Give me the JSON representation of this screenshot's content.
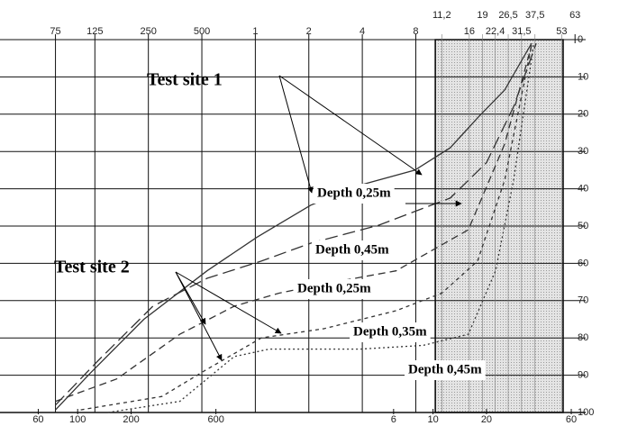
{
  "chart_data": {
    "type": "line",
    "xscale": "log",
    "xlim": [
      0.055,
      54
    ],
    "ylim": [
      0,
      100
    ],
    "y_inverted": true,
    "grid": true,
    "band": [
      10.3,
      54
    ],
    "band_color": "#d6d6d6",
    "xticks": [
      {
        "value": 0.075,
        "label": "75"
      },
      {
        "value": 0.125,
        "label": "125"
      },
      {
        "value": 0.25,
        "label": "250"
      },
      {
        "value": 0.5,
        "label": "500"
      },
      1,
      2,
      4,
      8,
      {
        "value": 11.2,
        "label": "11,2"
      },
      16,
      19,
      {
        "value": 22.4,
        "label": "22,4"
      },
      {
        "value": 26.5,
        "label": "26,5"
      },
      {
        "value": 31.5,
        "label": "31,5"
      },
      {
        "value": 37.5,
        "label": "37,5"
      },
      53,
      63
    ],
    "x2ticks": [
      {
        "value": 0.06,
        "label": "60"
      },
      {
        "value": 0.1,
        "label": "100"
      },
      {
        "value": 0.2,
        "label": "200"
      },
      {
        "value": 0.6,
        "label": "600"
      },
      6,
      10,
      20,
      60
    ],
    "yticks": [
      0,
      10,
      20,
      30,
      40,
      50,
      60,
      70,
      80,
      90,
      100
    ],
    "annotations": [
      "Test site 1",
      "Test site 2"
    ],
    "series": [
      {
        "name": "Depth 0,25m",
        "color": "#333333",
        "dash": "solid",
        "x": [
          0.075,
          0.117,
          0.236,
          0.535,
          1.02,
          2.05,
          3.9,
          7.9,
          12.5,
          17.8,
          25.3,
          35.9
        ],
        "values": [
          99.3,
          89.6,
          75,
          62,
          53,
          44.4,
          39,
          35,
          29,
          21,
          13.5,
          1
        ]
      },
      {
        "name": "Depth 0,45m",
        "color": "#333333",
        "dash": "long-dash",
        "x": [
          0.075,
          0.131,
          0.265,
          0.535,
          1.08,
          2.05,
          4.92,
          12.5,
          20,
          28.4,
          38.1
        ],
        "values": [
          98,
          86,
          71.5,
          64,
          59.4,
          54.6,
          49.8,
          42.5,
          33,
          18,
          1
        ]
      },
      {
        "name": "Depth 0,25m",
        "color": "#333333",
        "dash": "dash",
        "x": [
          0.075,
          0.166,
          0.376,
          0.76,
          1.36,
          2.44,
          6.2,
          15.8,
          25.3,
          35.9
        ],
        "values": [
          97,
          91,
          79,
          71.5,
          68,
          65.5,
          62,
          51,
          28,
          1.5
        ]
      },
      {
        "name": "Depth 0,35m",
        "color": "#333333",
        "dash": "short-dash",
        "x": [
          0.104,
          0.298,
          0.535,
          1.08,
          2.44,
          6.2,
          11.2,
          17.8,
          25.3,
          35.9
        ],
        "values": [
          99.3,
          95.7,
          88.4,
          80,
          77.5,
          72.7,
          68,
          59.4,
          37.7,
          1.5
        ]
      },
      {
        "name": "Depth 0,45m",
        "color": "#333333",
        "dash": "dotted",
        "x": [
          0.148,
          0.376,
          0.76,
          1.2,
          3.9,
          8.8,
          15.8,
          22.5,
          28.4,
          36.8
        ],
        "values": [
          100,
          97,
          85,
          83,
          83,
          82,
          79,
          62,
          37.7,
          1.5
        ]
      }
    ]
  }
}
